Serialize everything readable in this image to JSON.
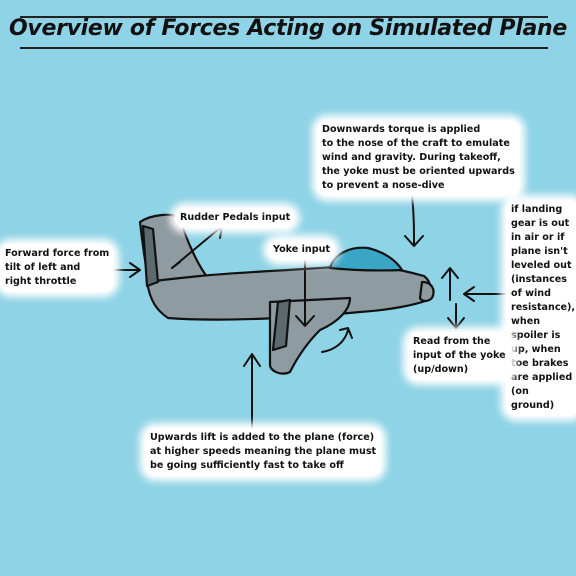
{
  "title": "Overview of Forces Acting on Simulated Plane",
  "colors": {
    "background": "#8ed3e6",
    "plane_body": "#8e9ba1",
    "cockpit": "#3aa6c5",
    "outline": "#111111",
    "label_glow": "#ffffff"
  },
  "labels": {
    "downwards_torque": "Downwards torque is applied\nto the nose of the craft to emulate\nwind and gravity. During takeoff,\nthe yoke must be oriented upwards\nto prevent a nose-dive",
    "rudder_pedals": "Rudder Pedals input",
    "yoke_input": "Yoke input",
    "forward_force": "Forward force from\ntilt of left and\nright throttle",
    "wind_resistance": "if landing\ngear is out\nin air or if\nplane isn't\nleveled out\n(instances\nof wind\nresistance),\nwhen\nspoiler is\nup, when\ntoe brakes\nare applied\n(on ground)",
    "read_yoke": "Read from the\ninput of the yoke\n(up/down)",
    "upwards_lift": "Upwards lift is added to the plane (force)\nat higher speeds meaning the plane must\nbe going sufficiently fast to take off"
  }
}
